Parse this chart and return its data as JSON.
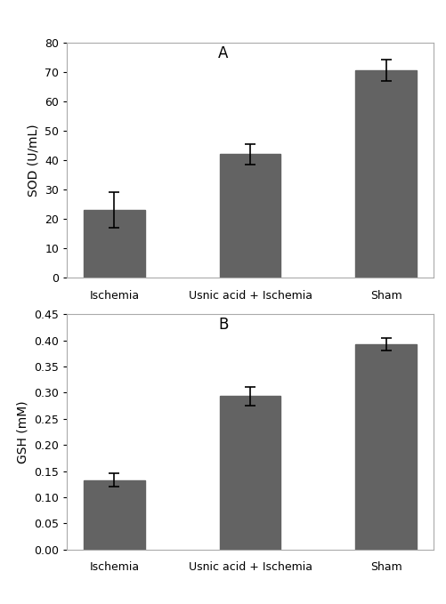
{
  "categories": [
    "Ischemia",
    "Usnic acid + Ischemia",
    "Sham"
  ],
  "sod_values": [
    23,
    42,
    70.5
  ],
  "sod_errors": [
    6,
    3.5,
    3.5
  ],
  "sod_ylabel": "SOD (U/mL)",
  "sod_ylim": [
    0,
    80
  ],
  "sod_yticks": [
    0,
    10,
    20,
    30,
    40,
    50,
    60,
    70,
    80
  ],
  "gsh_values": [
    0.133,
    0.293,
    0.393
  ],
  "gsh_errors": [
    0.013,
    0.018,
    0.012
  ],
  "gsh_ylabel": "GSH (mM)",
  "gsh_ylim": [
    0,
    0.45
  ],
  "gsh_yticks": [
    0,
    0.05,
    0.1,
    0.15,
    0.2,
    0.25,
    0.3,
    0.35,
    0.4,
    0.45
  ],
  "bar_color": "#636363",
  "bar_width": 0.45,
  "label_A": "A",
  "label_B": "B",
  "background_color": "#ffffff",
  "panel_bg": "#ffffff",
  "spine_color": "#aaaaaa",
  "error_color": "#000000",
  "title_fontsize": 12,
  "axis_label_fontsize": 10,
  "tick_fontsize": 9,
  "xtick_fontsize": 9
}
